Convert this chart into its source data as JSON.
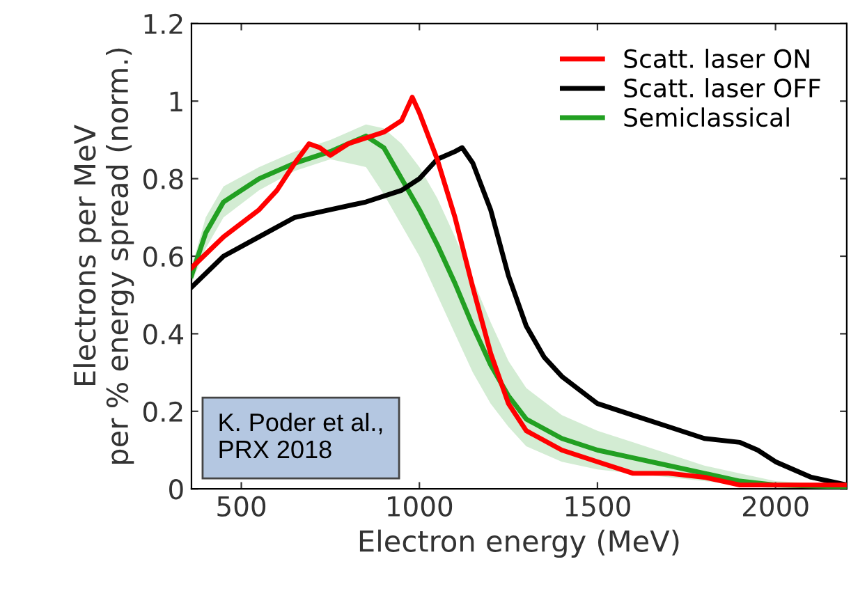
{
  "chart_data": {
    "type": "line",
    "xlabel": "Electron energy (MeV)",
    "ylabel": "Electrons per MeV\nper % energy spread (norm.)",
    "xlim": [
      360,
      2200
    ],
    "ylim": [
      0,
      1.2
    ],
    "xticks": [
      500,
      1000,
      1500,
      2000
    ],
    "yticks": [
      0,
      0.2,
      0.4,
      0.6,
      0.8,
      1,
      1.2
    ],
    "legend": "top right",
    "grid": false,
    "annotations": [
      "K. Poder et al.,\nPRX 2018"
    ],
    "series": [
      {
        "name": "Scatt. laser ON",
        "color": "#ff0000",
        "x": [
          360,
          450,
          550,
          600,
          650,
          690,
          720,
          750,
          800,
          900,
          950,
          980,
          1000,
          1050,
          1100,
          1150,
          1200,
          1250,
          1300,
          1400,
          1500,
          1600,
          1700,
          1800,
          1900,
          2000,
          2200
        ],
        "values": [
          0.57,
          0.65,
          0.72,
          0.77,
          0.84,
          0.89,
          0.88,
          0.86,
          0.89,
          0.92,
          0.95,
          1.01,
          0.97,
          0.85,
          0.7,
          0.52,
          0.35,
          0.22,
          0.15,
          0.1,
          0.07,
          0.04,
          0.04,
          0.03,
          0.01,
          0.01,
          0.01
        ]
      },
      {
        "name": "Scatt. laser OFF",
        "color": "#000000",
        "x": [
          360,
          450,
          550,
          650,
          750,
          850,
          950,
          1000,
          1050,
          1100,
          1120,
          1150,
          1200,
          1250,
          1300,
          1350,
          1400,
          1500,
          1600,
          1700,
          1800,
          1900,
          1950,
          2000,
          2100,
          2200
        ],
        "values": [
          0.52,
          0.6,
          0.65,
          0.7,
          0.72,
          0.74,
          0.77,
          0.8,
          0.85,
          0.87,
          0.88,
          0.84,
          0.72,
          0.55,
          0.42,
          0.34,
          0.29,
          0.22,
          0.19,
          0.16,
          0.13,
          0.12,
          0.1,
          0.07,
          0.03,
          0.01
        ]
      },
      {
        "name": "Semiclassical",
        "color": "#22a022",
        "x": [
          360,
          400,
          450,
          550,
          650,
          750,
          850,
          900,
          950,
          1000,
          1050,
          1100,
          1150,
          1200,
          1250,
          1300,
          1400,
          1500,
          1600,
          1700,
          1800,
          1900,
          2000,
          2200
        ],
        "values": [
          0.55,
          0.66,
          0.74,
          0.8,
          0.84,
          0.87,
          0.91,
          0.88,
          0.8,
          0.72,
          0.63,
          0.53,
          0.42,
          0.32,
          0.24,
          0.18,
          0.13,
          0.1,
          0.08,
          0.06,
          0.04,
          0.02,
          0.01,
          0.005
        ],
        "lower": [
          0.53,
          0.62,
          0.7,
          0.77,
          0.82,
          0.85,
          0.83,
          0.76,
          0.68,
          0.6,
          0.5,
          0.4,
          0.3,
          0.22,
          0.16,
          0.11,
          0.07,
          0.05,
          0.04,
          0.03,
          0.02,
          0.01,
          0.0,
          0.0
        ],
        "upper": [
          0.57,
          0.7,
          0.78,
          0.83,
          0.87,
          0.9,
          0.94,
          0.93,
          0.89,
          0.83,
          0.75,
          0.65,
          0.54,
          0.43,
          0.33,
          0.26,
          0.19,
          0.15,
          0.12,
          0.09,
          0.06,
          0.04,
          0.02,
          0.01
        ]
      }
    ]
  }
}
